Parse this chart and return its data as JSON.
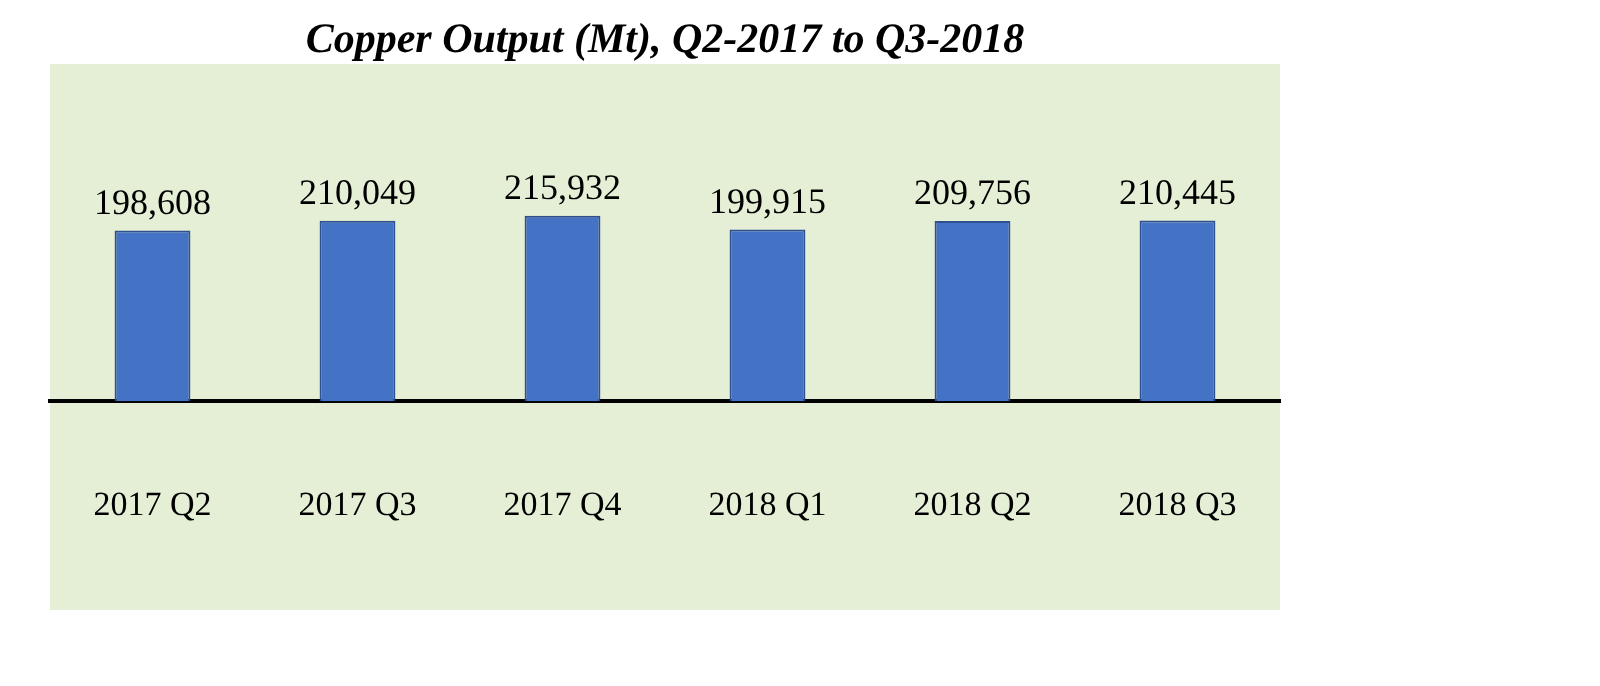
{
  "chart_data": {
    "type": "bar",
    "title": "Copper Output (Mt), Q2-2017 to Q3-2018",
    "categories": [
      "2017 Q2",
      "2017 Q3",
      "2017 Q4",
      "2018 Q1",
      "2018 Q2",
      "2018 Q3"
    ],
    "values": [
      198608,
      210049,
      215932,
      199915,
      209756,
      210445
    ],
    "value_labels": [
      "198,608",
      "210,049",
      "215,932",
      "199,915",
      "209,756",
      "210,445"
    ],
    "color": "#4472c4",
    "grid": false,
    "legend": false
  }
}
